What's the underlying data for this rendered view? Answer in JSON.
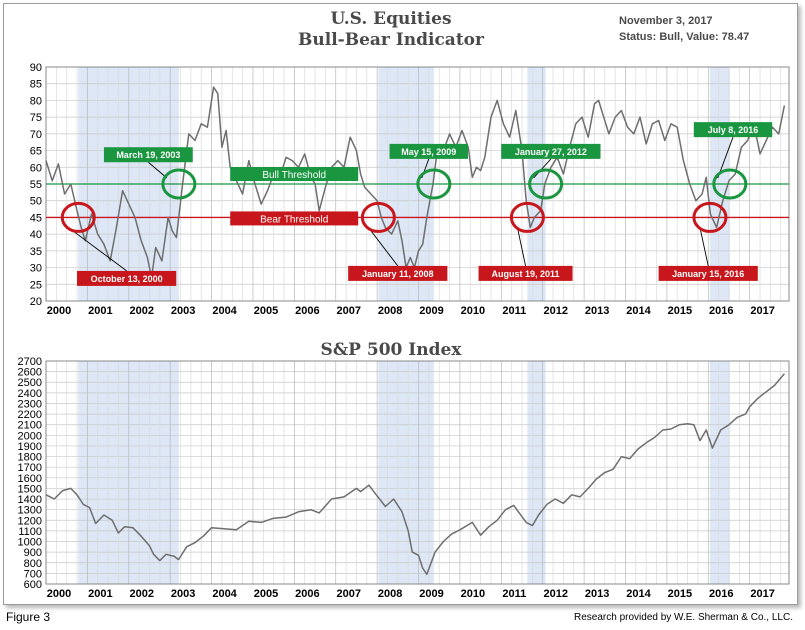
{
  "figure_label": "Figure 3",
  "credit": "Research provided by W.E. Sherman & Co., LLC.",
  "colors": {
    "shade": "#dde7f6",
    "line": "#6e6e6e",
    "bull": "#1a9640",
    "bear": "#c8171c",
    "title": "#4a4a4a"
  },
  "chart_data": [
    {
      "type": "line",
      "title": "U.S. Equities",
      "subtitle": "Bull-Bear Indicator",
      "date_text": "November 3, 2017",
      "status_text": "Status: Bull, Value: 78.47",
      "xlim": [
        2000.0,
        2017.95
      ],
      "ylim": [
        20,
        90
      ],
      "yticks": [
        20,
        25,
        30,
        35,
        40,
        45,
        50,
        55,
        60,
        65,
        70,
        75,
        80,
        85,
        90
      ],
      "xtick_labels": [
        "2000",
        "2001",
        "2002",
        "2003",
        "2004",
        "2005",
        "2006",
        "2007",
        "2008",
        "2009",
        "2010",
        "2011",
        "2012",
        "2013",
        "2014",
        "2015",
        "2016",
        "2017"
      ],
      "thresholds": [
        {
          "label": "Bull Threshold",
          "value": 55,
          "color": "#1a9640"
        },
        {
          "label": "Bear Threshold",
          "value": 45,
          "color": "#c8171c"
        }
      ],
      "shaded_periods": [
        [
          2000.78,
          2003.21
        ],
        [
          2008.03,
          2009.37
        ],
        [
          2011.63,
          2012.07
        ],
        [
          2016.04,
          2016.52
        ]
      ],
      "annotations": [
        {
          "text": "October 13, 2000",
          "kind": "bear",
          "x": 2000.78,
          "y": 45,
          "label_x": 2000.75,
          "label_y": 29
        },
        {
          "text": "March 19, 2003",
          "kind": "bull",
          "x": 2003.21,
          "y": 55,
          "label_x": 2001.4,
          "label_y": 66
        },
        {
          "text": "January 11, 2008",
          "kind": "bear",
          "x": 2008.03,
          "y": 45,
          "label_x": 2007.3,
          "label_y": 30.5
        },
        {
          "text": "May 15, 2009",
          "kind": "bull",
          "x": 2009.37,
          "y": 55,
          "label_x": 2008.3,
          "label_y": 67
        },
        {
          "text": "August 19, 2011",
          "kind": "bear",
          "x": 2011.63,
          "y": 45,
          "label_x": 2010.45,
          "label_y": 30.5
        },
        {
          "text": "January 27, 2012",
          "kind": "bull",
          "x": 2012.07,
          "y": 55,
          "label_x": 2011.0,
          "label_y": 67
        },
        {
          "text": "January 15, 2016",
          "kind": "bear",
          "x": 2016.04,
          "y": 45,
          "label_x": 2014.8,
          "label_y": 30.5
        },
        {
          "text": "July 8, 2016",
          "kind": "bull",
          "x": 2016.52,
          "y": 55,
          "label_x": 2015.65,
          "label_y": 73.5
        }
      ],
      "series": [
        {
          "x": [
            2000.0,
            2000.15,
            2000.3,
            2000.45,
            2000.6,
            2000.75,
            2000.85,
            2000.95,
            2001.1,
            2001.25,
            2001.4,
            2001.55,
            2001.7,
            2001.85,
            2002.0,
            2002.15,
            2002.3,
            2002.45,
            2002.55,
            2002.65,
            2002.8,
            2002.95,
            2003.05,
            2003.15,
            2003.3,
            2003.45,
            2003.6,
            2003.75,
            2003.9,
            2004.05,
            2004.1,
            2004.15,
            2004.25,
            2004.35,
            2004.45,
            2004.6,
            2004.75,
            2004.9,
            2005.05,
            2005.2,
            2005.35,
            2005.5,
            2005.65,
            2005.8,
            2005.95,
            2006.1,
            2006.25,
            2006.4,
            2006.5,
            2006.6,
            2006.75,
            2006.9,
            2007.05,
            2007.2,
            2007.35,
            2007.5,
            2007.6,
            2007.7,
            2007.85,
            2008.0,
            2008.1,
            2008.2,
            2008.35,
            2008.5,
            2008.6,
            2008.7,
            2008.8,
            2008.9,
            2009.0,
            2009.1,
            2009.2,
            2009.35,
            2009.45,
            2009.6,
            2009.75,
            2009.9,
            2010.05,
            2010.2,
            2010.3,
            2010.4,
            2010.5,
            2010.6,
            2010.75,
            2010.9,
            2011.05,
            2011.2,
            2011.35,
            2011.5,
            2011.6,
            2011.7,
            2011.8,
            2011.95,
            2012.05,
            2012.2,
            2012.35,
            2012.5,
            2012.65,
            2012.8,
            2012.95,
            2013.1,
            2013.25,
            2013.35,
            2013.45,
            2013.6,
            2013.75,
            2013.9,
            2014.05,
            2014.2,
            2014.35,
            2014.5,
            2014.65,
            2014.8,
            2014.95,
            2015.1,
            2015.25,
            2015.4,
            2015.55,
            2015.7,
            2015.85,
            2015.95,
            2016.05,
            2016.2,
            2016.35,
            2016.5,
            2016.65,
            2016.8,
            2016.95,
            2017.1,
            2017.25,
            2017.4,
            2017.55,
            2017.7,
            2017.84
          ],
          "y": [
            62,
            56,
            61,
            52,
            55,
            47,
            42,
            38,
            46,
            40,
            37,
            32,
            42,
            53,
            49,
            45,
            38,
            33,
            27,
            36,
            32,
            45,
            41,
            39,
            55,
            70,
            68,
            73,
            72,
            84,
            83,
            82,
            66,
            71,
            60,
            56,
            52,
            62,
            55,
            49,
            53,
            58,
            57,
            63,
            62,
            60,
            64,
            57,
            55,
            47,
            54,
            60,
            62,
            60,
            69,
            65,
            58,
            54,
            52,
            50,
            45,
            42,
            40,
            44,
            38,
            30,
            33,
            30,
            35,
            37,
            45,
            55,
            65,
            65,
            70,
            66,
            71,
            66,
            57,
            60,
            59,
            63,
            75,
            80,
            73,
            69,
            77,
            65,
            50,
            42,
            45,
            47,
            55,
            60,
            63,
            58,
            66,
            73,
            75,
            69,
            79,
            80,
            76,
            70,
            75,
            77,
            72,
            70,
            75,
            67,
            73,
            74,
            68,
            73,
            72,
            62,
            55,
            50,
            52,
            57,
            46,
            42,
            50,
            56,
            58,
            66,
            68,
            73,
            64,
            68,
            72,
            70,
            78.47
          ]
        }
      ]
    },
    {
      "type": "line",
      "title": "S&P 500 Index",
      "xlim": [
        2000.0,
        2017.95
      ],
      "ylim": [
        600,
        2700
      ],
      "yticks": [
        600,
        700,
        800,
        900,
        1000,
        1100,
        1200,
        1300,
        1400,
        1500,
        1600,
        1700,
        1800,
        1900,
        2000,
        2100,
        2200,
        2300,
        2400,
        2500,
        2600,
        2700
      ],
      "xtick_labels": [
        "2000",
        "2001",
        "2002",
        "2003",
        "2004",
        "2005",
        "2006",
        "2007",
        "2008",
        "2009",
        "2010",
        "2011",
        "2012",
        "2013",
        "2014",
        "2015",
        "2016",
        "2017"
      ],
      "shaded_periods": [
        [
          2000.78,
          2003.21
        ],
        [
          2008.03,
          2009.37
        ],
        [
          2011.63,
          2012.07
        ],
        [
          2016.04,
          2016.52
        ]
      ],
      "series": [
        {
          "x": [
            2000.0,
            2000.2,
            2000.4,
            2000.6,
            2000.75,
            2000.9,
            2001.05,
            2001.2,
            2001.4,
            2001.6,
            2001.75,
            2001.9,
            2002.1,
            2002.3,
            2002.5,
            2002.6,
            2002.75,
            2002.9,
            2003.1,
            2003.2,
            2003.4,
            2003.6,
            2003.8,
            2004.0,
            2004.3,
            2004.6,
            2004.9,
            2005.2,
            2005.5,
            2005.8,
            2006.1,
            2006.4,
            2006.6,
            2006.9,
            2007.2,
            2007.5,
            2007.6,
            2007.8,
            2008.0,
            2008.2,
            2008.4,
            2008.6,
            2008.75,
            2008.85,
            2009.0,
            2009.1,
            2009.2,
            2009.4,
            2009.6,
            2009.8,
            2010.0,
            2010.3,
            2010.5,
            2010.7,
            2010.9,
            2011.1,
            2011.3,
            2011.6,
            2011.75,
            2011.9,
            2012.1,
            2012.3,
            2012.5,
            2012.7,
            2012.9,
            2013.1,
            2013.3,
            2013.5,
            2013.7,
            2013.9,
            2014.1,
            2014.3,
            2014.5,
            2014.7,
            2014.9,
            2015.1,
            2015.3,
            2015.5,
            2015.65,
            2015.8,
            2015.95,
            2016.1,
            2016.3,
            2016.5,
            2016.7,
            2016.9,
            2017.0,
            2017.2,
            2017.4,
            2017.6,
            2017.84
          ],
          "y": [
            1440,
            1400,
            1480,
            1500,
            1440,
            1350,
            1320,
            1170,
            1250,
            1200,
            1080,
            1140,
            1130,
            1050,
            960,
            880,
            820,
            880,
            860,
            830,
            950,
            990,
            1050,
            1130,
            1120,
            1110,
            1190,
            1180,
            1220,
            1230,
            1280,
            1300,
            1270,
            1400,
            1420,
            1500,
            1470,
            1530,
            1430,
            1330,
            1400,
            1280,
            1100,
            900,
            870,
            750,
            690,
            900,
            1000,
            1070,
            1110,
            1180,
            1060,
            1140,
            1200,
            1300,
            1340,
            1180,
            1150,
            1250,
            1350,
            1400,
            1360,
            1440,
            1420,
            1500,
            1590,
            1650,
            1680,
            1800,
            1780,
            1870,
            1930,
            1980,
            2050,
            2060,
            2100,
            2110,
            2100,
            1950,
            2050,
            1880,
            2050,
            2100,
            2170,
            2200,
            2270,
            2350,
            2410,
            2470,
            2580
          ]
        }
      ]
    }
  ]
}
